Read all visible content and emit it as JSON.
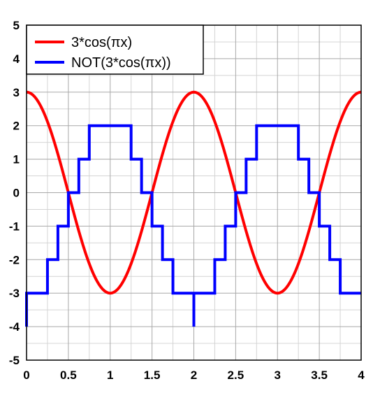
{
  "chart_data": {
    "type": "line",
    "xlim": [
      0,
      4
    ],
    "ylim": [
      -5,
      5
    ],
    "x_ticks": [
      "0",
      "0.5",
      "1",
      "1.5",
      "2",
      "2.5",
      "3",
      "3.5",
      "4"
    ],
    "y_ticks": [
      "5",
      "4",
      "3",
      "2",
      "1",
      "0",
      "-1",
      "-2",
      "-3",
      "-4",
      "-5"
    ],
    "grid": true,
    "minor_grid": true,
    "legend_position": "top-left",
    "series": [
      {
        "name": "3*cos(πx)",
        "color": "#ff0000",
        "style": "smooth",
        "formula": "3*cos(pi*x)"
      },
      {
        "name": "NOT(3*cos(πx))",
        "color": "#0000ff",
        "style": "step",
        "x": [
          0,
          0,
          0.25,
          0.25,
          0.375,
          0.375,
          0.5,
          0.5,
          0.625,
          0.625,
          0.75,
          0.75,
          1.25,
          1.25,
          1.375,
          1.375,
          1.5,
          1.5,
          1.625,
          1.625,
          1.75,
          1.75,
          2.0,
          2.0,
          2.0,
          2.25,
          2.25,
          2.375,
          2.375,
          2.5,
          2.5,
          2.625,
          2.625,
          2.75,
          2.75,
          3.25,
          3.25,
          3.375,
          3.375,
          3.5,
          3.5,
          3.625,
          3.625,
          3.75,
          3.75,
          4.0
        ],
        "y": [
          -4,
          -3,
          -3,
          -2,
          -2,
          -1,
          -1,
          0,
          0,
          1,
          1,
          2,
          2,
          1,
          1,
          0,
          0,
          -1,
          -1,
          -2,
          -2,
          -3,
          -3,
          -4,
          -3,
          -3,
          -2,
          -2,
          -1,
          -1,
          0,
          0,
          1,
          1,
          2,
          2,
          1,
          1,
          0,
          0,
          -1,
          -1,
          -2,
          -2,
          -3,
          -3
        ]
      }
    ]
  }
}
